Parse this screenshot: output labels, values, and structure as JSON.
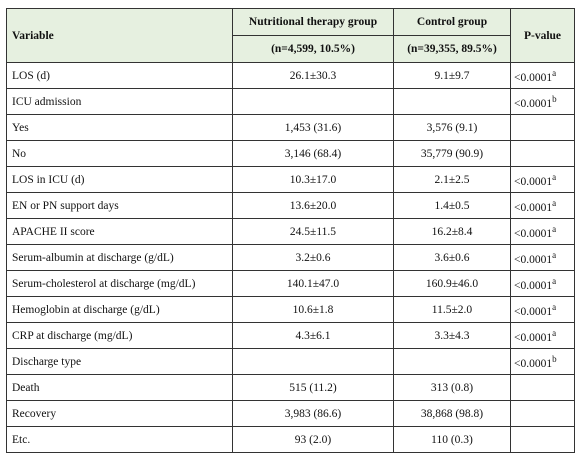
{
  "table": {
    "header": {
      "variable": "Variable",
      "nt": "Nutritional therapy group",
      "nt_n": "(n=4,599, 10.5%)",
      "ctrl": "Control group",
      "ctrl_n": "(n=39,355, 89.5%)",
      "p": "P-value"
    },
    "rows": [
      {
        "variable": "LOS (d)",
        "nt": "26.1±30.3",
        "ctrl": "9.1±9.7",
        "p": "<0.0001",
        "sup": "a"
      },
      {
        "variable": "ICU admission",
        "p": "<0.0001",
        "sup": "b"
      },
      {
        "variable": "Yes",
        "nt": "1,453 (31.6)",
        "ctrl": "3,576 (9.1)"
      },
      {
        "variable": "No",
        "nt": "3,146 (68.4)",
        "ctrl": "35,779 (90.9)"
      },
      {
        "variable": "LOS in ICU (d)",
        "nt": "10.3±17.0",
        "ctrl": "2.1±2.5",
        "p": "<0.0001",
        "sup": "a"
      },
      {
        "variable": "EN or PN support days",
        "nt": "13.6±20.0",
        "ctrl": "1.4±0.5",
        "p": "<0.0001",
        "sup": "a"
      },
      {
        "variable": "APACHE II score",
        "nt": "24.5±11.5",
        "ctrl": "16.2±8.4",
        "p": "<0.0001",
        "sup": "a"
      },
      {
        "variable": "Serum-albumin at discharge (g/dL)",
        "nt": "3.2±0.6",
        "ctrl": "3.6±0.6",
        "p": "<0.0001",
        "sup": "a"
      },
      {
        "variable": "Serum-cholesterol at discharge (mg/dL)",
        "nt": "140.1±47.0",
        "ctrl": "160.9±46.0",
        "p": "<0.0001",
        "sup": "a"
      },
      {
        "variable": "Hemoglobin at discharge (g/dL)",
        "nt": "10.6±1.8",
        "ctrl": "11.5±2.0",
        "p": "<0.0001",
        "sup": "a"
      },
      {
        "variable": "CRP at discharge (mg/dL)",
        "nt": "4.3±6.1",
        "ctrl": "3.3±4.3",
        "p": "<0.0001",
        "sup": "a"
      },
      {
        "variable": "Discharge type",
        "p": "<0.0001",
        "sup": "b"
      },
      {
        "variable": "Death",
        "nt": "515 (11.2)",
        "ctrl": "313 (0.8)"
      },
      {
        "variable": "Recovery",
        "nt": "3,983 (86.6)",
        "ctrl": "38,868 (98.8)"
      },
      {
        "variable": "Etc.",
        "nt": "93 (2.0)",
        "ctrl": "110 (0.3)"
      }
    ]
  }
}
